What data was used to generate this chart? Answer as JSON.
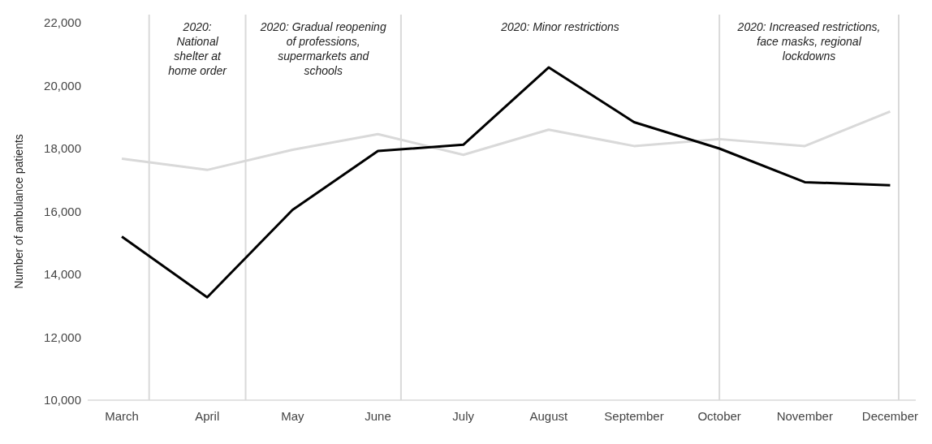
{
  "chart_data": {
    "type": "line",
    "ylabel": "Number of ambulance patients",
    "categories": [
      "March",
      "April",
      "May",
      "June",
      "July",
      "August",
      "September",
      "October",
      "November",
      "December"
    ],
    "ylim": [
      10000,
      22000
    ],
    "yticks": [
      {
        "value": 10000,
        "label": "10,000"
      },
      {
        "value": 12000,
        "label": "12,000"
      },
      {
        "value": 14000,
        "label": "14,000"
      },
      {
        "value": 16000,
        "label": "16,000"
      },
      {
        "value": 18000,
        "label": "18,000"
      },
      {
        "value": 20000,
        "label": "20,000"
      },
      {
        "value": 22000,
        "label": "22,000"
      }
    ],
    "series": [
      {
        "color": "#d9d9d9",
        "values": [
          17680,
          17320,
          17960,
          18460,
          17800,
          18600,
          18080,
          18300,
          18080,
          19180
        ]
      },
      {
        "color": "#000000",
        "values": [
          15200,
          13270,
          16050,
          17920,
          18120,
          20580,
          18840,
          18000,
          16930,
          16830
        ]
      }
    ],
    "ref_lines": [
      {
        "axis": "x",
        "value": "October",
        "color": "#d9d9d9"
      }
    ],
    "annotations": [
      "2020:\nNational\nshelter at\nhome order",
      "2020: Gradual reopening\nof professions,\nsupermarkets and\nschools",
      "2020: Minor restrictions",
      "2020: Increased restrictions,\nface masks, regional\nlockdowns"
    ],
    "grid": false,
    "marker": "none",
    "line_style": "solid"
  }
}
